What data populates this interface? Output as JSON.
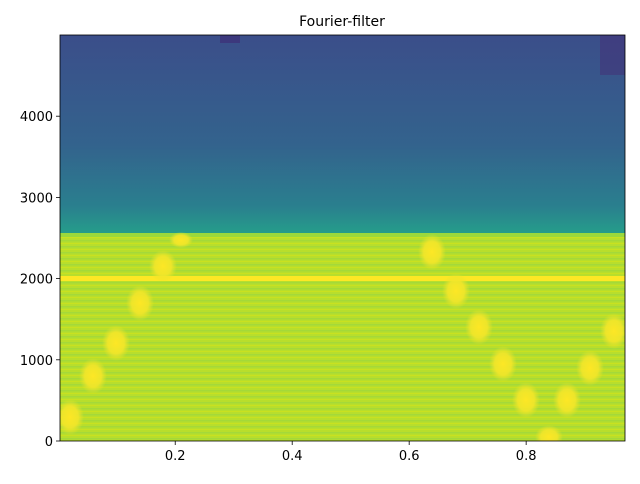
{
  "chart_data": {
    "type": "spectrogram",
    "title": "Fourier-filter",
    "xlim": [
      0.003,
      0.969
    ],
    "xticks": [
      0.2,
      0.4,
      0.6,
      0.8
    ],
    "ylim": [
      0,
      5000
    ],
    "yticks": [
      0,
      1000,
      2000,
      3000,
      4000
    ]
  }
}
